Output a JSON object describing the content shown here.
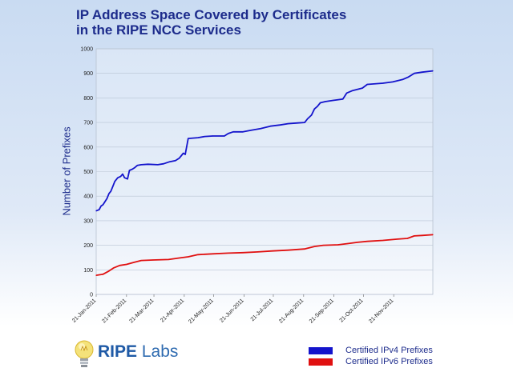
{
  "title_lines": [
    "IP Address Space Covered by Certificates",
    "in the RIPE NCC Services"
  ],
  "logo": {
    "brand": "RIPE",
    "suffix": "Labs"
  },
  "colors": {
    "ipv4": "#1414cc",
    "ipv6": "#e01010",
    "title": "#1d2c8c"
  },
  "chart_data": {
    "type": "line",
    "title": "IP Address Space Covered by Certificates in the RIPE NCC Services",
    "xlabel": "",
    "ylabel": "Number of Prefixes",
    "ylim": [
      0,
      1000
    ],
    "yticks": [
      0,
      100,
      200,
      300,
      400,
      500,
      600,
      700,
      800,
      900,
      1000
    ],
    "xticks": [
      "21-Jan-2011",
      "21-Feb-2011",
      "21-Mar-2011",
      "21-Apr-2011",
      "21-May-2011",
      "21-Jun-2011",
      "21-Jul-2011",
      "21-Aug-2011",
      "21-Sep-2011",
      "21-Oct-2011",
      "21-Nov-2011"
    ],
    "xrange": [
      "2011-01-21",
      "2011-12-31"
    ],
    "grid": true,
    "legend_position": "bottom-right",
    "series": [
      {
        "name": "Certified IPv4 Prefixes",
        "color": "#1414cc",
        "points": [
          [
            "2011-01-21",
            340
          ],
          [
            "2011-01-24",
            345
          ],
          [
            "2011-01-26",
            360
          ],
          [
            "2011-01-28",
            365
          ],
          [
            "2011-02-01",
            390
          ],
          [
            "2011-02-03",
            410
          ],
          [
            "2011-02-05",
            420
          ],
          [
            "2011-02-07",
            440
          ],
          [
            "2011-02-09",
            460
          ],
          [
            "2011-02-12",
            475
          ],
          [
            "2011-02-15",
            480
          ],
          [
            "2011-02-17",
            490
          ],
          [
            "2011-02-19",
            475
          ],
          [
            "2011-02-22",
            470
          ],
          [
            "2011-02-24",
            505
          ],
          [
            "2011-02-27",
            510
          ],
          [
            "2011-03-01",
            515
          ],
          [
            "2011-03-04",
            525
          ],
          [
            "2011-03-08",
            528
          ],
          [
            "2011-03-15",
            530
          ],
          [
            "2011-03-25",
            528
          ],
          [
            "2011-03-31",
            532
          ],
          [
            "2011-04-06",
            540
          ],
          [
            "2011-04-12",
            545
          ],
          [
            "2011-04-16",
            555
          ],
          [
            "2011-04-20",
            575
          ],
          [
            "2011-04-22",
            570
          ],
          [
            "2011-04-25",
            635
          ],
          [
            "2011-05-05",
            638
          ],
          [
            "2011-05-12",
            643
          ],
          [
            "2011-05-20",
            645
          ],
          [
            "2011-06-01",
            645
          ],
          [
            "2011-06-05",
            655
          ],
          [
            "2011-06-10",
            662
          ],
          [
            "2011-06-20",
            662
          ],
          [
            "2011-06-28",
            668
          ],
          [
            "2011-07-08",
            675
          ],
          [
            "2011-07-18",
            685
          ],
          [
            "2011-07-28",
            690
          ],
          [
            "2011-08-05",
            695
          ],
          [
            "2011-08-15",
            698
          ],
          [
            "2011-08-22",
            700
          ],
          [
            "2011-08-25",
            715
          ],
          [
            "2011-08-29",
            730
          ],
          [
            "2011-09-01",
            755
          ],
          [
            "2011-09-04",
            765
          ],
          [
            "2011-09-07",
            780
          ],
          [
            "2011-09-12",
            785
          ],
          [
            "2011-09-20",
            790
          ],
          [
            "2011-09-30",
            795
          ],
          [
            "2011-10-04",
            820
          ],
          [
            "2011-10-10",
            830
          ],
          [
            "2011-10-20",
            840
          ],
          [
            "2011-10-25",
            855
          ],
          [
            "2011-11-10",
            860
          ],
          [
            "2011-11-20",
            865
          ],
          [
            "2011-11-30",
            875
          ],
          [
            "2011-12-06",
            885
          ],
          [
            "2011-12-12",
            900
          ],
          [
            "2011-12-20",
            905
          ],
          [
            "2011-12-31",
            910
          ]
        ]
      },
      {
        "name": "Certified IPv6 Prefixes",
        "color": "#e01010",
        "points": [
          [
            "2011-01-21",
            78
          ],
          [
            "2011-01-28",
            82
          ],
          [
            "2011-02-03",
            95
          ],
          [
            "2011-02-08",
            108
          ],
          [
            "2011-02-14",
            118
          ],
          [
            "2011-02-21",
            122
          ],
          [
            "2011-02-28",
            130
          ],
          [
            "2011-03-08",
            138
          ],
          [
            "2011-03-20",
            140
          ],
          [
            "2011-04-05",
            142
          ],
          [
            "2011-04-15",
            148
          ],
          [
            "2011-04-25",
            153
          ],
          [
            "2011-05-05",
            162
          ],
          [
            "2011-05-20",
            165
          ],
          [
            "2011-06-05",
            168
          ],
          [
            "2011-06-20",
            170
          ],
          [
            "2011-07-05",
            173
          ],
          [
            "2011-07-20",
            177
          ],
          [
            "2011-08-05",
            180
          ],
          [
            "2011-08-22",
            185
          ],
          [
            "2011-09-01",
            195
          ],
          [
            "2011-09-10",
            200
          ],
          [
            "2011-09-25",
            202
          ],
          [
            "2011-10-05",
            207
          ],
          [
            "2011-10-15",
            212
          ],
          [
            "2011-10-25",
            216
          ],
          [
            "2011-11-10",
            220
          ],
          [
            "2011-11-25",
            225
          ],
          [
            "2011-12-05",
            228
          ],
          [
            "2011-12-12",
            238
          ],
          [
            "2011-12-20",
            240
          ],
          [
            "2011-12-31",
            243
          ]
        ]
      }
    ]
  }
}
